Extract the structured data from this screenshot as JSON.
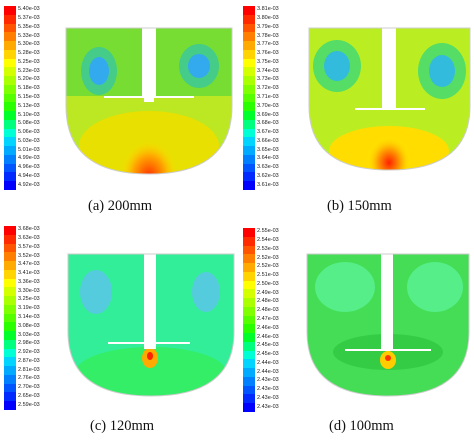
{
  "panels": [
    {
      "caption": "(a) 200mm",
      "colorbar_labels": [
        "5.40e-03",
        "5.37e-03",
        "5.35e-03",
        "5.33e-03",
        "5.30e-03",
        "5.28e-03",
        "5.25e-03",
        "5.23e-03",
        "5.20e-03",
        "5.18e-03",
        "5.15e-03",
        "5.13e-03",
        "5.10e-03",
        "5.08e-03",
        "5.06e-03",
        "5.03e-03",
        "5.01e-03",
        "4.99e-03",
        "4.96e-03",
        "4.94e-03",
        "4.92e-03"
      ],
      "impeller_level": "middle"
    },
    {
      "caption": "(b) 150mm",
      "colorbar_labels": [
        "3.81e-03",
        "3.80e-03",
        "3.79e-03",
        "3.78e-03",
        "3.77e-03",
        "3.76e-03",
        "3.75e-03",
        "3.74e-03",
        "3.73e-03",
        "3.72e-03",
        "3.71e-03",
        "3.70e-03",
        "3.69e-03",
        "3.68e-03",
        "3.67e-03",
        "3.66e-03",
        "3.65e-03",
        "3.64e-03",
        "3.63e-03",
        "3.62e-03",
        "3.61e-03"
      ],
      "impeller_level": "lower-middle"
    },
    {
      "caption": "(c) 120mm",
      "colorbar_labels": [
        "3.68e-03",
        "3.63e-03",
        "3.57e-03",
        "3.52e-03",
        "3.47e-03",
        "3.41e-03",
        "3.36e-03",
        "3.30e-03",
        "3.25e-03",
        "3.19e-03",
        "3.14e-03",
        "3.08e-03",
        "3.03e-03",
        "2.98e-03",
        "2.92e-03",
        "2.87e-03",
        "2.81e-03",
        "2.76e-03",
        "2.70e-03",
        "2.65e-03",
        "2.59e-03"
      ],
      "impeller_level": "low"
    },
    {
      "caption": "(d) 100mm",
      "colorbar_labels": [
        "2.55e-03",
        "2.54e-03",
        "2.53e-03",
        "2.52e-03",
        "2.52e-03",
        "2.51e-03",
        "2.50e-03",
        "2.49e-03",
        "2.48e-03",
        "2.48e-03",
        "2.47e-03",
        "2.46e-03",
        "2.46e-03",
        "2.45e-03",
        "2.45e-03",
        "2.44e-03",
        "2.44e-03",
        "2.43e-03",
        "2.43e-03",
        "2.43e-03",
        "2.43e-03"
      ],
      "impeller_level": "lowest"
    }
  ],
  "colors": {
    "scale": [
      "#ff0000",
      "#ff2a00",
      "#ff5500",
      "#ff7f00",
      "#ffaa00",
      "#ffd400",
      "#ffff00",
      "#d4ff00",
      "#aaff00",
      "#7fff00",
      "#55ff00",
      "#2aff00",
      "#00ff2a",
      "#00ff7f",
      "#00ffd4",
      "#00d4ff",
      "#00aaff",
      "#007fff",
      "#0055ff",
      "#002aff",
      "#0000ff"
    ]
  }
}
